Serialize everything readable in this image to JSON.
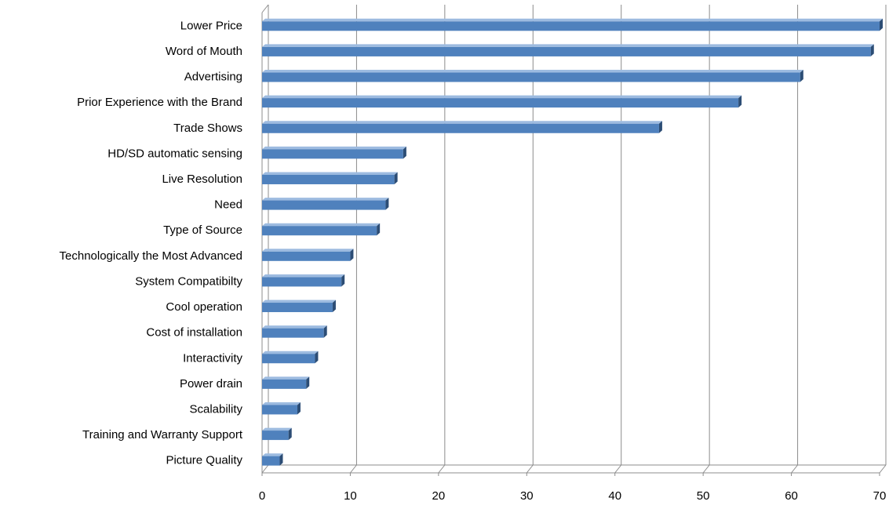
{
  "chart_data": {
    "type": "bar",
    "orientation": "horizontal",
    "style": "3d",
    "categories": [
      "Lower Price",
      "Word of Mouth",
      "Advertising",
      "Prior Experience with the Brand",
      "Trade Shows",
      "HD/SD automatic  sensing",
      "Live Resolution",
      "Need",
      "Type of Source",
      "Technologically the  Most Advanced",
      "System Compatibilty",
      "Cool operation",
      "Cost of installation",
      "Interactivity",
      "Power drain",
      "Scalability",
      "Training and Warranty Support",
      "Picture Quality"
    ],
    "values": [
      70,
      69,
      61,
      54,
      45,
      16,
      15,
      14,
      13,
      10,
      9,
      8,
      7,
      6,
      5,
      4,
      3,
      2
    ],
    "xlim": [
      0,
      70
    ],
    "xticks": [
      0,
      10,
      20,
      30,
      40,
      50,
      60,
      70
    ],
    "title": "",
    "xlabel": "",
    "ylabel": "",
    "grid": "vertical",
    "legend": "none"
  },
  "colors": {
    "bar_front": "#4f81bd",
    "bar_top": "#9dbbe0",
    "bar_side": "#2c4d75",
    "gridline": "#8c8c8c",
    "axis": "#8c8c8c",
    "text": "#000000"
  }
}
